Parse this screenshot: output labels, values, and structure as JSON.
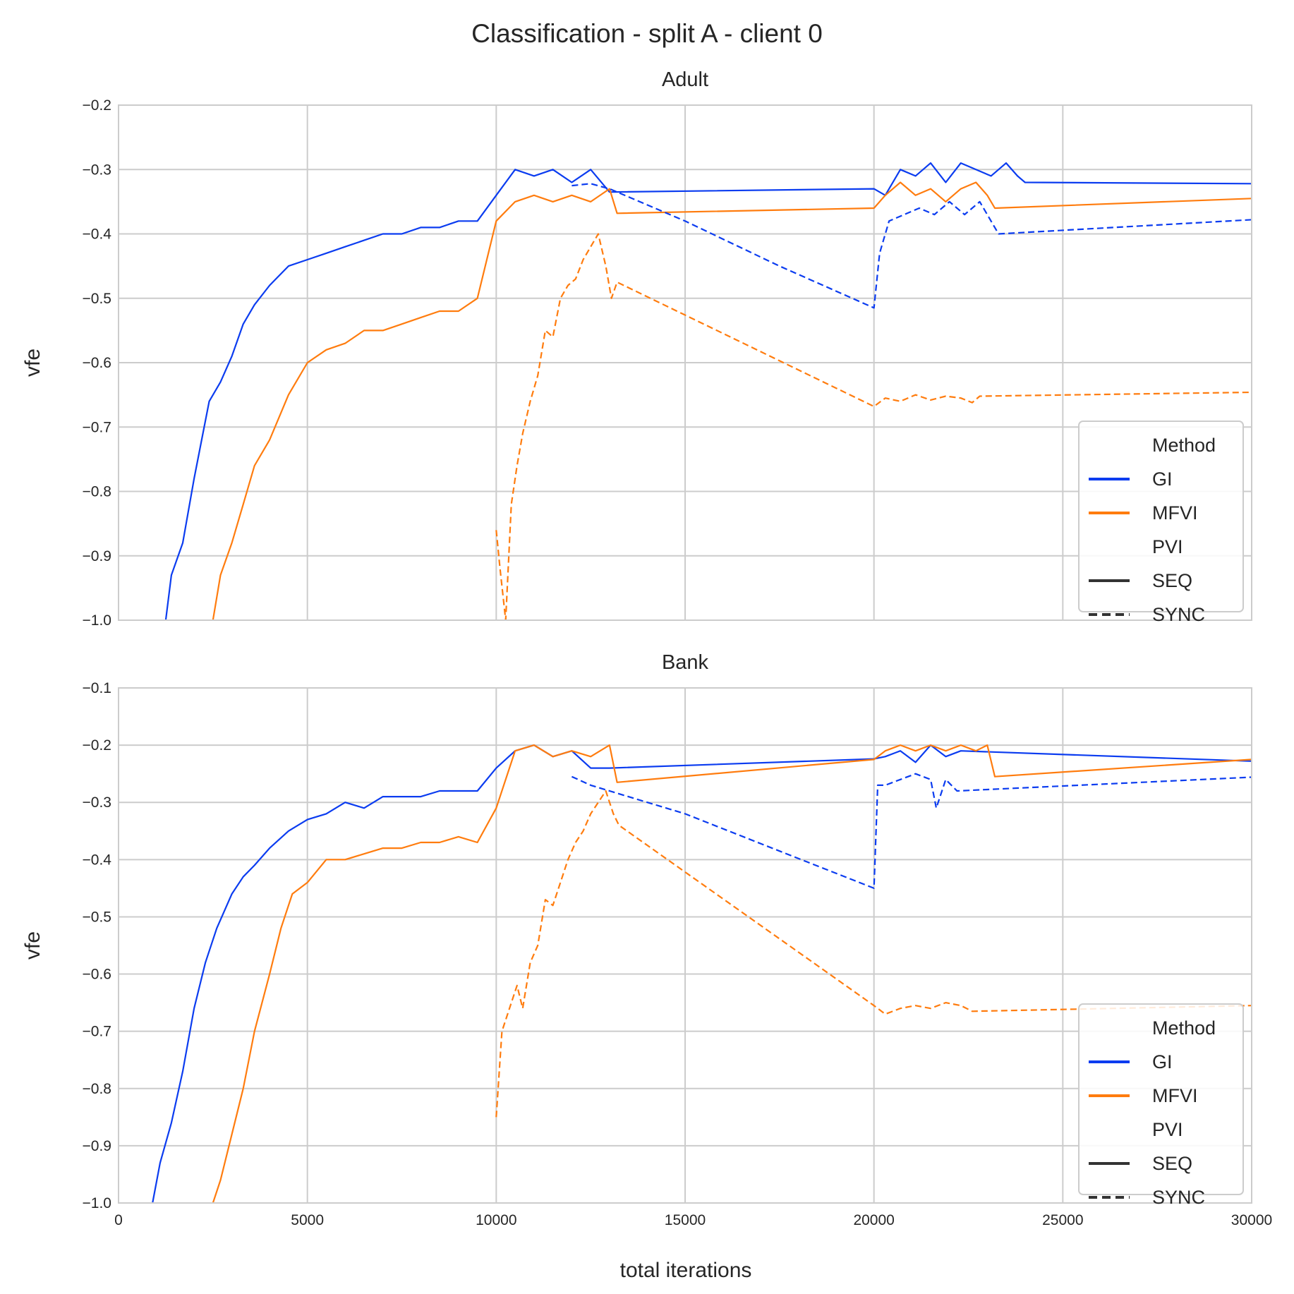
{
  "figure": {
    "suptitle": "Classification - split A - client 0",
    "xlabel": "total iterations",
    "background": "#ffffff",
    "grid_color": "#cccccc",
    "colors": {
      "GI": "#0b3cf0",
      "MFVI": "#ff7c0e",
      "style_key": "#333333"
    }
  },
  "legend": {
    "location": "lower right",
    "method_title": "Method",
    "method_items": [
      "GI",
      "MFVI"
    ],
    "style_title": "PVI",
    "style_items": [
      {
        "label": "SEQ",
        "dash": "solid"
      },
      {
        "label": "SYNC",
        "dash": "dashed"
      }
    ]
  },
  "chart_data": [
    {
      "type": "line",
      "title": "Adult",
      "xlabel": "",
      "ylabel": "vfe",
      "xlim": [
        0,
        30000
      ],
      "ylim": [
        -1.0,
        -0.2
      ],
      "xticks": [
        0,
        5000,
        10000,
        15000,
        20000,
        25000,
        30000
      ],
      "yticks": [
        -1.0,
        -0.9,
        -0.8,
        -0.7,
        -0.6,
        -0.5,
        -0.4,
        -0.3,
        -0.2
      ],
      "ytick_labels": [
        "−1.0",
        "−0.9",
        "−0.8",
        "−0.7",
        "−0.6",
        "−0.5",
        "−0.4",
        "−0.3",
        "−0.2"
      ],
      "grid": true,
      "legend_position": "lower right",
      "series": [
        {
          "method": "GI",
          "pvi": "SEQ",
          "x": [
            1250,
            1400,
            1700,
            2000,
            2200,
            2400,
            2700,
            3000,
            3300,
            3600,
            4000,
            4500,
            5000,
            5500,
            6000,
            6500,
            7000,
            7500,
            8000,
            8500,
            9000,
            9500,
            10000,
            10500,
            11000,
            11500,
            12000,
            12500,
            13000,
            20000,
            20300,
            20700,
            21100,
            21500,
            21900,
            22300,
            22700,
            23100,
            23500,
            23800,
            24000,
            30000
          ],
          "y": [
            -1.0,
            -0.93,
            -0.88,
            -0.78,
            -0.72,
            -0.66,
            -0.63,
            -0.59,
            -0.54,
            -0.51,
            -0.48,
            -0.45,
            -0.44,
            -0.43,
            -0.42,
            -0.41,
            -0.4,
            -0.4,
            -0.39,
            -0.39,
            -0.38,
            -0.38,
            -0.34,
            -0.3,
            -0.31,
            -0.3,
            -0.32,
            -0.3,
            -0.335,
            -0.33,
            -0.34,
            -0.3,
            -0.31,
            -0.29,
            -0.32,
            -0.29,
            -0.3,
            -0.31,
            -0.29,
            -0.31,
            -0.32,
            -0.322
          ]
        },
        {
          "method": "MFVI",
          "pvi": "SEQ",
          "x": [
            2500,
            2700,
            3000,
            3300,
            3600,
            4000,
            4500,
            5000,
            5500,
            6000,
            6500,
            7000,
            7500,
            8000,
            8500,
            9000,
            9500,
            10000,
            10500,
            11000,
            11500,
            12000,
            12500,
            13000,
            13200,
            20000,
            20300,
            20700,
            21100,
            21500,
            21900,
            22300,
            22700,
            23000,
            23200,
            30000
          ],
          "y": [
            -1.0,
            -0.93,
            -0.88,
            -0.82,
            -0.76,
            -0.72,
            -0.65,
            -0.6,
            -0.58,
            -0.57,
            -0.55,
            -0.55,
            -0.54,
            -0.53,
            -0.52,
            -0.52,
            -0.5,
            -0.38,
            -0.35,
            -0.34,
            -0.35,
            -0.34,
            -0.35,
            -0.33,
            -0.368,
            -0.36,
            -0.34,
            -0.32,
            -0.34,
            -0.33,
            -0.35,
            -0.33,
            -0.32,
            -0.34,
            -0.36,
            -0.345
          ]
        },
        {
          "method": "GI",
          "pvi": "SYNC",
          "x": [
            12000,
            12500,
            13000,
            15000,
            17500,
            20000,
            20150,
            20400,
            20800,
            21200,
            21600,
            22000,
            22400,
            22800,
            23100,
            23300,
            30000
          ],
          "y": [
            -0.325,
            -0.322,
            -0.33,
            -0.38,
            -0.45,
            -0.515,
            -0.43,
            -0.38,
            -0.37,
            -0.36,
            -0.37,
            -0.35,
            -0.37,
            -0.35,
            -0.38,
            -0.4,
            -0.378
          ]
        },
        {
          "method": "MFVI",
          "pvi": "SYNC",
          "x": [
            10000,
            10100,
            10250,
            10400,
            10550,
            10700,
            10900,
            11100,
            11300,
            11500,
            11700,
            11900,
            12100,
            12300,
            12500,
            12700,
            12900,
            13050,
            13200,
            20000,
            20300,
            20700,
            21100,
            21500,
            21900,
            22300,
            22600,
            22800,
            30000
          ],
          "y": [
            -0.86,
            -0.92,
            -1.0,
            -0.82,
            -0.76,
            -0.71,
            -0.66,
            -0.62,
            -0.55,
            -0.56,
            -0.5,
            -0.48,
            -0.47,
            -0.44,
            -0.42,
            -0.4,
            -0.45,
            -0.5,
            -0.475,
            -0.668,
            -0.655,
            -0.66,
            -0.65,
            -0.658,
            -0.652,
            -0.655,
            -0.662,
            -0.652,
            -0.646
          ]
        }
      ]
    },
    {
      "type": "line",
      "title": "Bank",
      "xlabel": "total iterations",
      "ylabel": "vfe",
      "xlim": [
        0,
        30000
      ],
      "ylim": [
        -1.0,
        -0.1
      ],
      "xticks": [
        0,
        5000,
        10000,
        15000,
        20000,
        25000,
        30000
      ],
      "yticks": [
        -1.0,
        -0.9,
        -0.8,
        -0.7,
        -0.6,
        -0.5,
        -0.4,
        -0.3,
        -0.2,
        -0.1
      ],
      "ytick_labels": [
        "−1.0",
        "−0.9",
        "−0.8",
        "−0.7",
        "−0.6",
        "−0.5",
        "−0.4",
        "−0.3",
        "−0.2",
        "−0.1"
      ],
      "grid": true,
      "legend_position": "lower right",
      "series": [
        {
          "method": "GI",
          "pvi": "SEQ",
          "x": [
            900,
            1100,
            1400,
            1700,
            2000,
            2300,
            2600,
            3000,
            3300,
            3600,
            4000,
            4500,
            5000,
            5500,
            6000,
            6500,
            7000,
            7500,
            8000,
            8500,
            9000,
            9500,
            10000,
            10500,
            11000,
            11500,
            12000,
            12500,
            13000,
            20000,
            20300,
            20700,
            21100,
            21500,
            21900,
            22300,
            30000
          ],
          "y": [
            -1.0,
            -0.93,
            -0.86,
            -0.77,
            -0.66,
            -0.58,
            -0.52,
            -0.46,
            -0.43,
            -0.41,
            -0.38,
            -0.35,
            -0.33,
            -0.32,
            -0.3,
            -0.31,
            -0.29,
            -0.29,
            -0.29,
            -0.28,
            -0.28,
            -0.28,
            -0.24,
            -0.21,
            -0.2,
            -0.22,
            -0.21,
            -0.24,
            -0.24,
            -0.224,
            -0.22,
            -0.21,
            -0.23,
            -0.2,
            -0.22,
            -0.21,
            -0.228
          ]
        },
        {
          "method": "MFVI",
          "pvi": "SEQ",
          "x": [
            2500,
            2700,
            3000,
            3300,
            3600,
            4000,
            4300,
            4600,
            5000,
            5500,
            6000,
            6500,
            7000,
            7500,
            8000,
            8500,
            9000,
            9500,
            10000,
            10500,
            11000,
            11500,
            12000,
            12500,
            13000,
            13200,
            20000,
            20300,
            20700,
            21100,
            21500,
            21900,
            22300,
            22700,
            23000,
            23200,
            30000
          ],
          "y": [
            -1.0,
            -0.96,
            -0.88,
            -0.8,
            -0.7,
            -0.6,
            -0.52,
            -0.46,
            -0.44,
            -0.4,
            -0.4,
            -0.39,
            -0.38,
            -0.38,
            -0.37,
            -0.37,
            -0.36,
            -0.37,
            -0.31,
            -0.21,
            -0.2,
            -0.22,
            -0.21,
            -0.22,
            -0.2,
            -0.265,
            -0.225,
            -0.21,
            -0.2,
            -0.21,
            -0.2,
            -0.21,
            -0.2,
            -0.21,
            -0.2,
            -0.255,
            -0.225
          ]
        },
        {
          "method": "GI",
          "pvi": "SYNC",
          "x": [
            12000,
            12500,
            13000,
            15000,
            17500,
            20000,
            20100,
            20300,
            20700,
            21100,
            21500,
            21650,
            21900,
            22200,
            30000
          ],
          "y": [
            -0.255,
            -0.27,
            -0.28,
            -0.32,
            -0.385,
            -0.45,
            -0.27,
            -0.27,
            -0.26,
            -0.25,
            -0.26,
            -0.31,
            -0.26,
            -0.28,
            -0.256
          ]
        },
        {
          "method": "MFVI",
          "pvi": "SYNC",
          "x": [
            10000,
            10150,
            10350,
            10550,
            10700,
            10900,
            11100,
            11300,
            11500,
            11700,
            11900,
            12100,
            12300,
            12500,
            12700,
            12900,
            13100,
            13250,
            20000,
            20300,
            20700,
            21100,
            21500,
            21900,
            22300,
            22600,
            30000
          ],
          "y": [
            -0.85,
            -0.7,
            -0.66,
            -0.62,
            -0.66,
            -0.58,
            -0.55,
            -0.47,
            -0.48,
            -0.44,
            -0.4,
            -0.37,
            -0.35,
            -0.32,
            -0.3,
            -0.28,
            -0.32,
            -0.34,
            -0.655,
            -0.67,
            -0.66,
            -0.655,
            -0.66,
            -0.65,
            -0.655,
            -0.665,
            -0.655
          ]
        }
      ]
    }
  ]
}
